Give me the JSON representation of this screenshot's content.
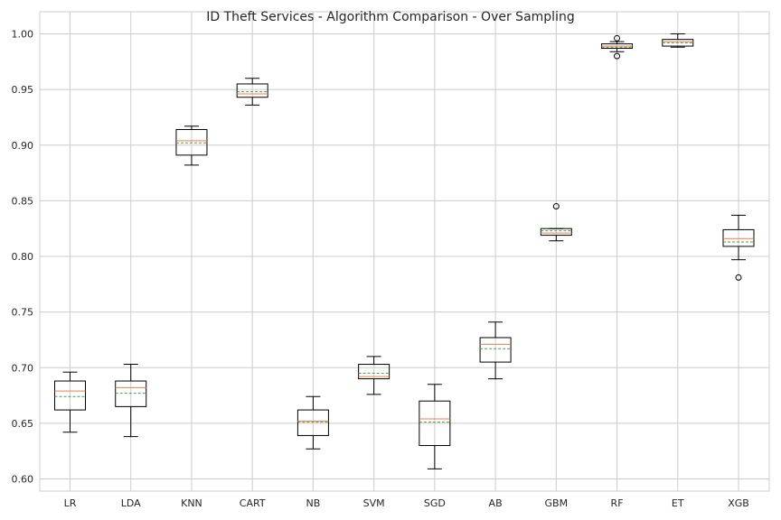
{
  "chart_data": {
    "type": "box",
    "title": "ID Theft Services - Algorithm Comparison - Over Sampling",
    "xlabel": "",
    "ylabel": "",
    "ylim": [
      0.59,
      1.02
    ],
    "yticks": [
      "0.60",
      "0.65",
      "0.70",
      "0.75",
      "0.80",
      "0.85",
      "0.90",
      "0.95",
      "1.00"
    ],
    "grid": true,
    "colors": {
      "box": "#000000",
      "median": "#e8804f",
      "mean": "#4c9b4c",
      "grid": "#cccccc"
    },
    "categories": [
      "LR",
      "LDA",
      "KNN",
      "CART",
      "NB",
      "SVM",
      "SGD",
      "AB",
      "GBM",
      "RF",
      "ET",
      "XGB"
    ],
    "boxes": [
      {
        "label": "LR",
        "whislo": 0.642,
        "q1": 0.662,
        "med": 0.679,
        "mean": 0.674,
        "q3": 0.688,
        "whishi": 0.696,
        "fliers": []
      },
      {
        "label": "LDA",
        "whislo": 0.638,
        "q1": 0.665,
        "med": 0.682,
        "mean": 0.677,
        "q3": 0.688,
        "whishi": 0.703,
        "fliers": []
      },
      {
        "label": "KNN",
        "whislo": 0.882,
        "q1": 0.891,
        "med": 0.904,
        "mean": 0.902,
        "q3": 0.914,
        "whishi": 0.917,
        "fliers": []
      },
      {
        "label": "CART",
        "whislo": 0.936,
        "q1": 0.943,
        "med": 0.946,
        "mean": 0.948,
        "q3": 0.955,
        "whishi": 0.96,
        "fliers": []
      },
      {
        "label": "NB",
        "whislo": 0.627,
        "q1": 0.639,
        "med": 0.652,
        "mean": 0.651,
        "q3": 0.662,
        "whishi": 0.674,
        "fliers": []
      },
      {
        "label": "SVM",
        "whislo": 0.676,
        "q1": 0.69,
        "med": 0.692,
        "mean": 0.695,
        "q3": 0.703,
        "whishi": 0.71,
        "fliers": []
      },
      {
        "label": "SGD",
        "whislo": 0.609,
        "q1": 0.63,
        "med": 0.654,
        "mean": 0.651,
        "q3": 0.67,
        "whishi": 0.685,
        "fliers": []
      },
      {
        "label": "AB",
        "whislo": 0.69,
        "q1": 0.705,
        "med": 0.721,
        "mean": 0.717,
        "q3": 0.727,
        "whishi": 0.741,
        "fliers": []
      },
      {
        "label": "GBM",
        "whislo": 0.814,
        "q1": 0.819,
        "med": 0.821,
        "mean": 0.823,
        "q3": 0.825,
        "whishi": 0.825,
        "fliers": [
          0.845
        ]
      },
      {
        "label": "RF",
        "whislo": 0.984,
        "q1": 0.987,
        "med": 0.989,
        "mean": 0.988,
        "q3": 0.991,
        "whishi": 0.993,
        "fliers": [
          0.996,
          0.98
        ]
      },
      {
        "label": "ET",
        "whislo": 0.988,
        "q1": 0.989,
        "med": 0.993,
        "mean": 0.992,
        "q3": 0.995,
        "whishi": 1.0,
        "fliers": []
      },
      {
        "label": "XGB",
        "whislo": 0.797,
        "q1": 0.809,
        "med": 0.816,
        "mean": 0.813,
        "q3": 0.824,
        "whishi": 0.837,
        "fliers": [
          0.781
        ]
      }
    ]
  }
}
